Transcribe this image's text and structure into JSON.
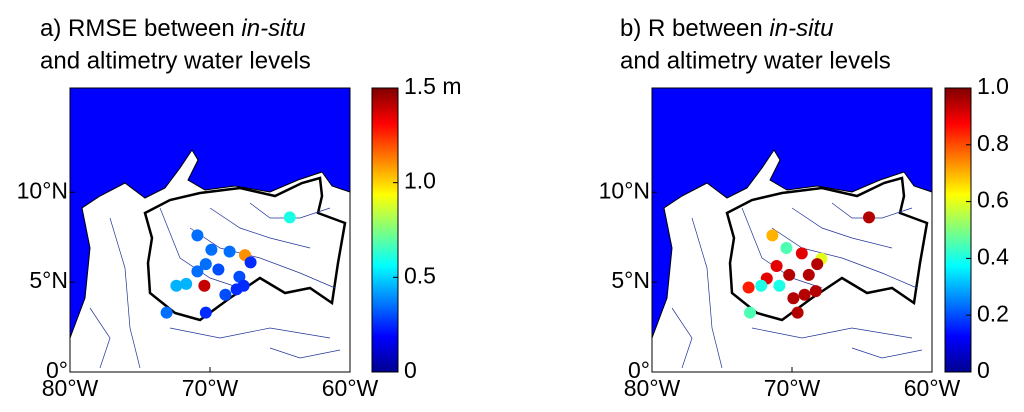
{
  "chart_data": [
    {
      "type": "scatter",
      "title": {
        "prefix": "a) RMSE between ",
        "italic": "in-situ",
        "line2": "and altimetry water levels"
      },
      "xlim": [
        -80,
        -60
      ],
      "ylim": [
        0,
        15.8
      ],
      "xticks": [
        {
          "value": -80,
          "label": "80°W"
        },
        {
          "value": -70,
          "label": "70°W"
        },
        {
          "value": -60,
          "label": "60°W"
        }
      ],
      "yticks": [
        {
          "value": 0,
          "label": "0°"
        },
        {
          "value": 5,
          "label": "5°N"
        },
        {
          "value": 10,
          "label": "10°N"
        }
      ],
      "clim": [
        0,
        1.5
      ],
      "cticks": [
        0,
        0.5,
        {
          "value": 1,
          "label": "1.0"
        },
        {
          "value": 1.5,
          "label": "1.5 m"
        }
      ],
      "colormap": "jet",
      "points": {
        "lon": [
          -64.3,
          -70.9,
          -69.9,
          -68.6,
          -67.5,
          -67.1,
          -70.3,
          -69.4,
          -67.9,
          -70.9,
          -71.7,
          -72.4,
          -70.4,
          -68.1,
          -68.9,
          -67.6,
          -73.1,
          -70.3
        ],
        "lat": [
          8.6,
          7.6,
          6.8,
          6.7,
          6.5,
          6.1,
          6.0,
          5.7,
          5.3,
          5.6,
          4.9,
          4.8,
          4.8,
          4.6,
          4.3,
          4.8,
          3.3,
          3.3
        ],
        "values": [
          0.6,
          0.35,
          0.35,
          0.35,
          1.1,
          0.25,
          0.35,
          0.3,
          0.3,
          0.35,
          0.45,
          0.45,
          1.4,
          0.25,
          0.3,
          0.25,
          0.35,
          0.25
        ]
      }
    },
    {
      "type": "scatter",
      "title": {
        "prefix": "b) R between ",
        "italic": "in-situ",
        "line2": "and altimetry water levels"
      },
      "xlim": [
        -80,
        -60
      ],
      "ylim": [
        0,
        15.8
      ],
      "xticks": [
        {
          "value": -80,
          "label": "80°W"
        },
        {
          "value": -70,
          "label": "70°W"
        },
        {
          "value": -60,
          "label": "60°W"
        }
      ],
      "yticks": [
        {
          "value": 0,
          "label": "0°"
        },
        {
          "value": 5,
          "label": "5°N"
        },
        {
          "value": 10,
          "label": "10°N"
        }
      ],
      "clim": [
        0,
        1
      ],
      "cticks": [
        0,
        0.2,
        0.4,
        0.6,
        0.8,
        {
          "value": 1,
          "label": "1.0"
        }
      ],
      "colormap": "jet",
      "points": {
        "lon": [
          -64.5,
          -71.4,
          -70.4,
          -69.3,
          -67.9,
          -68.2,
          -71.1,
          -70.2,
          -71.8,
          -68.8,
          -72.2,
          -73.1,
          -70.9,
          -69.9,
          -68.3,
          -69.1,
          -73.0,
          -69.6
        ],
        "lat": [
          8.6,
          7.6,
          6.9,
          6.6,
          6.3,
          6.0,
          5.9,
          5.4,
          5.2,
          5.4,
          4.8,
          4.7,
          4.8,
          4.1,
          4.5,
          4.3,
          3.3,
          3.3
        ],
        "values": [
          0.95,
          0.7,
          0.45,
          0.9,
          0.6,
          0.95,
          0.9,
          0.95,
          0.9,
          0.95,
          0.4,
          0.85,
          0.4,
          0.95,
          0.95,
          0.95,
          0.45,
          0.95
        ]
      }
    }
  ]
}
